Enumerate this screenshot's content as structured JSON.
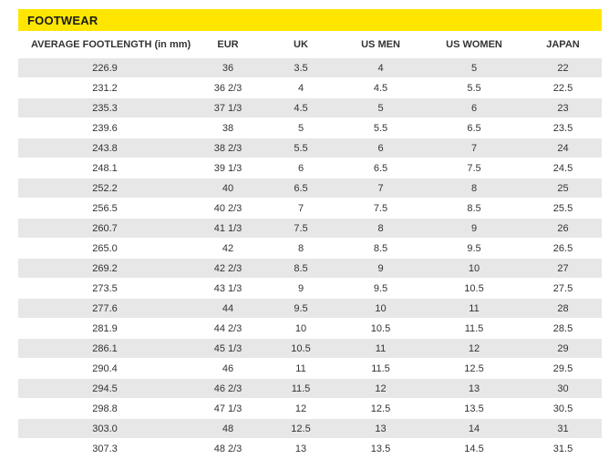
{
  "section_title": "FOOTWEAR",
  "columns": [
    "AVERAGE FOOTLENGTH (in mm)",
    "EUR",
    "UK",
    "US MEN",
    "US WOMEN",
    "JAPAN"
  ],
  "rows": [
    [
      "226.9",
      "36",
      "3.5",
      "4",
      "5",
      "22"
    ],
    [
      "231.2",
      "36 2/3",
      "4",
      "4.5",
      "5.5",
      "22.5"
    ],
    [
      "235.3",
      "37 1/3",
      "4.5",
      "5",
      "6",
      "23"
    ],
    [
      "239.6",
      "38",
      "5",
      "5.5",
      "6.5",
      "23.5"
    ],
    [
      "243.8",
      "38 2/3",
      "5.5",
      "6",
      "7",
      "24"
    ],
    [
      "248.1",
      "39 1/3",
      "6",
      "6.5",
      "7.5",
      "24.5"
    ],
    [
      "252.2",
      "40",
      "6.5",
      "7",
      "8",
      "25"
    ],
    [
      "256.5",
      "40 2/3",
      "7",
      "7.5",
      "8.5",
      "25.5"
    ],
    [
      "260.7",
      "41 1/3",
      "7.5",
      "8",
      "9",
      "26"
    ],
    [
      "265.0",
      "42",
      "8",
      "8.5",
      "9.5",
      "26.5"
    ],
    [
      "269.2",
      "42 2/3",
      "8.5",
      "9",
      "10",
      "27"
    ],
    [
      "273.5",
      "43 1/3",
      "9",
      "9.5",
      "10.5",
      "27.5"
    ],
    [
      "277.6",
      "44",
      "9.5",
      "10",
      "11",
      "28"
    ],
    [
      "281.9",
      "44 2/3",
      "10",
      "10.5",
      "11.5",
      "28.5"
    ],
    [
      "286.1",
      "45 1/3",
      "10.5",
      "11",
      "12",
      "29"
    ],
    [
      "290.4",
      "46",
      "11",
      "11.5",
      "12.5",
      "29.5"
    ],
    [
      "294.5",
      "46 2/3",
      "11.5",
      "12",
      "13",
      "30"
    ],
    [
      "298.8",
      "47 1/3",
      "12",
      "12.5",
      "13.5",
      "30.5"
    ],
    [
      "303.0",
      "48",
      "12.5",
      "13",
      "14",
      "31"
    ],
    [
      "307.3",
      "48 2/3",
      "13",
      "13.5",
      "14.5",
      "31.5"
    ]
  ],
  "colors": {
    "band": "#ffe600",
    "stripe": "#e7e7e7",
    "text": "#333333"
  }
}
